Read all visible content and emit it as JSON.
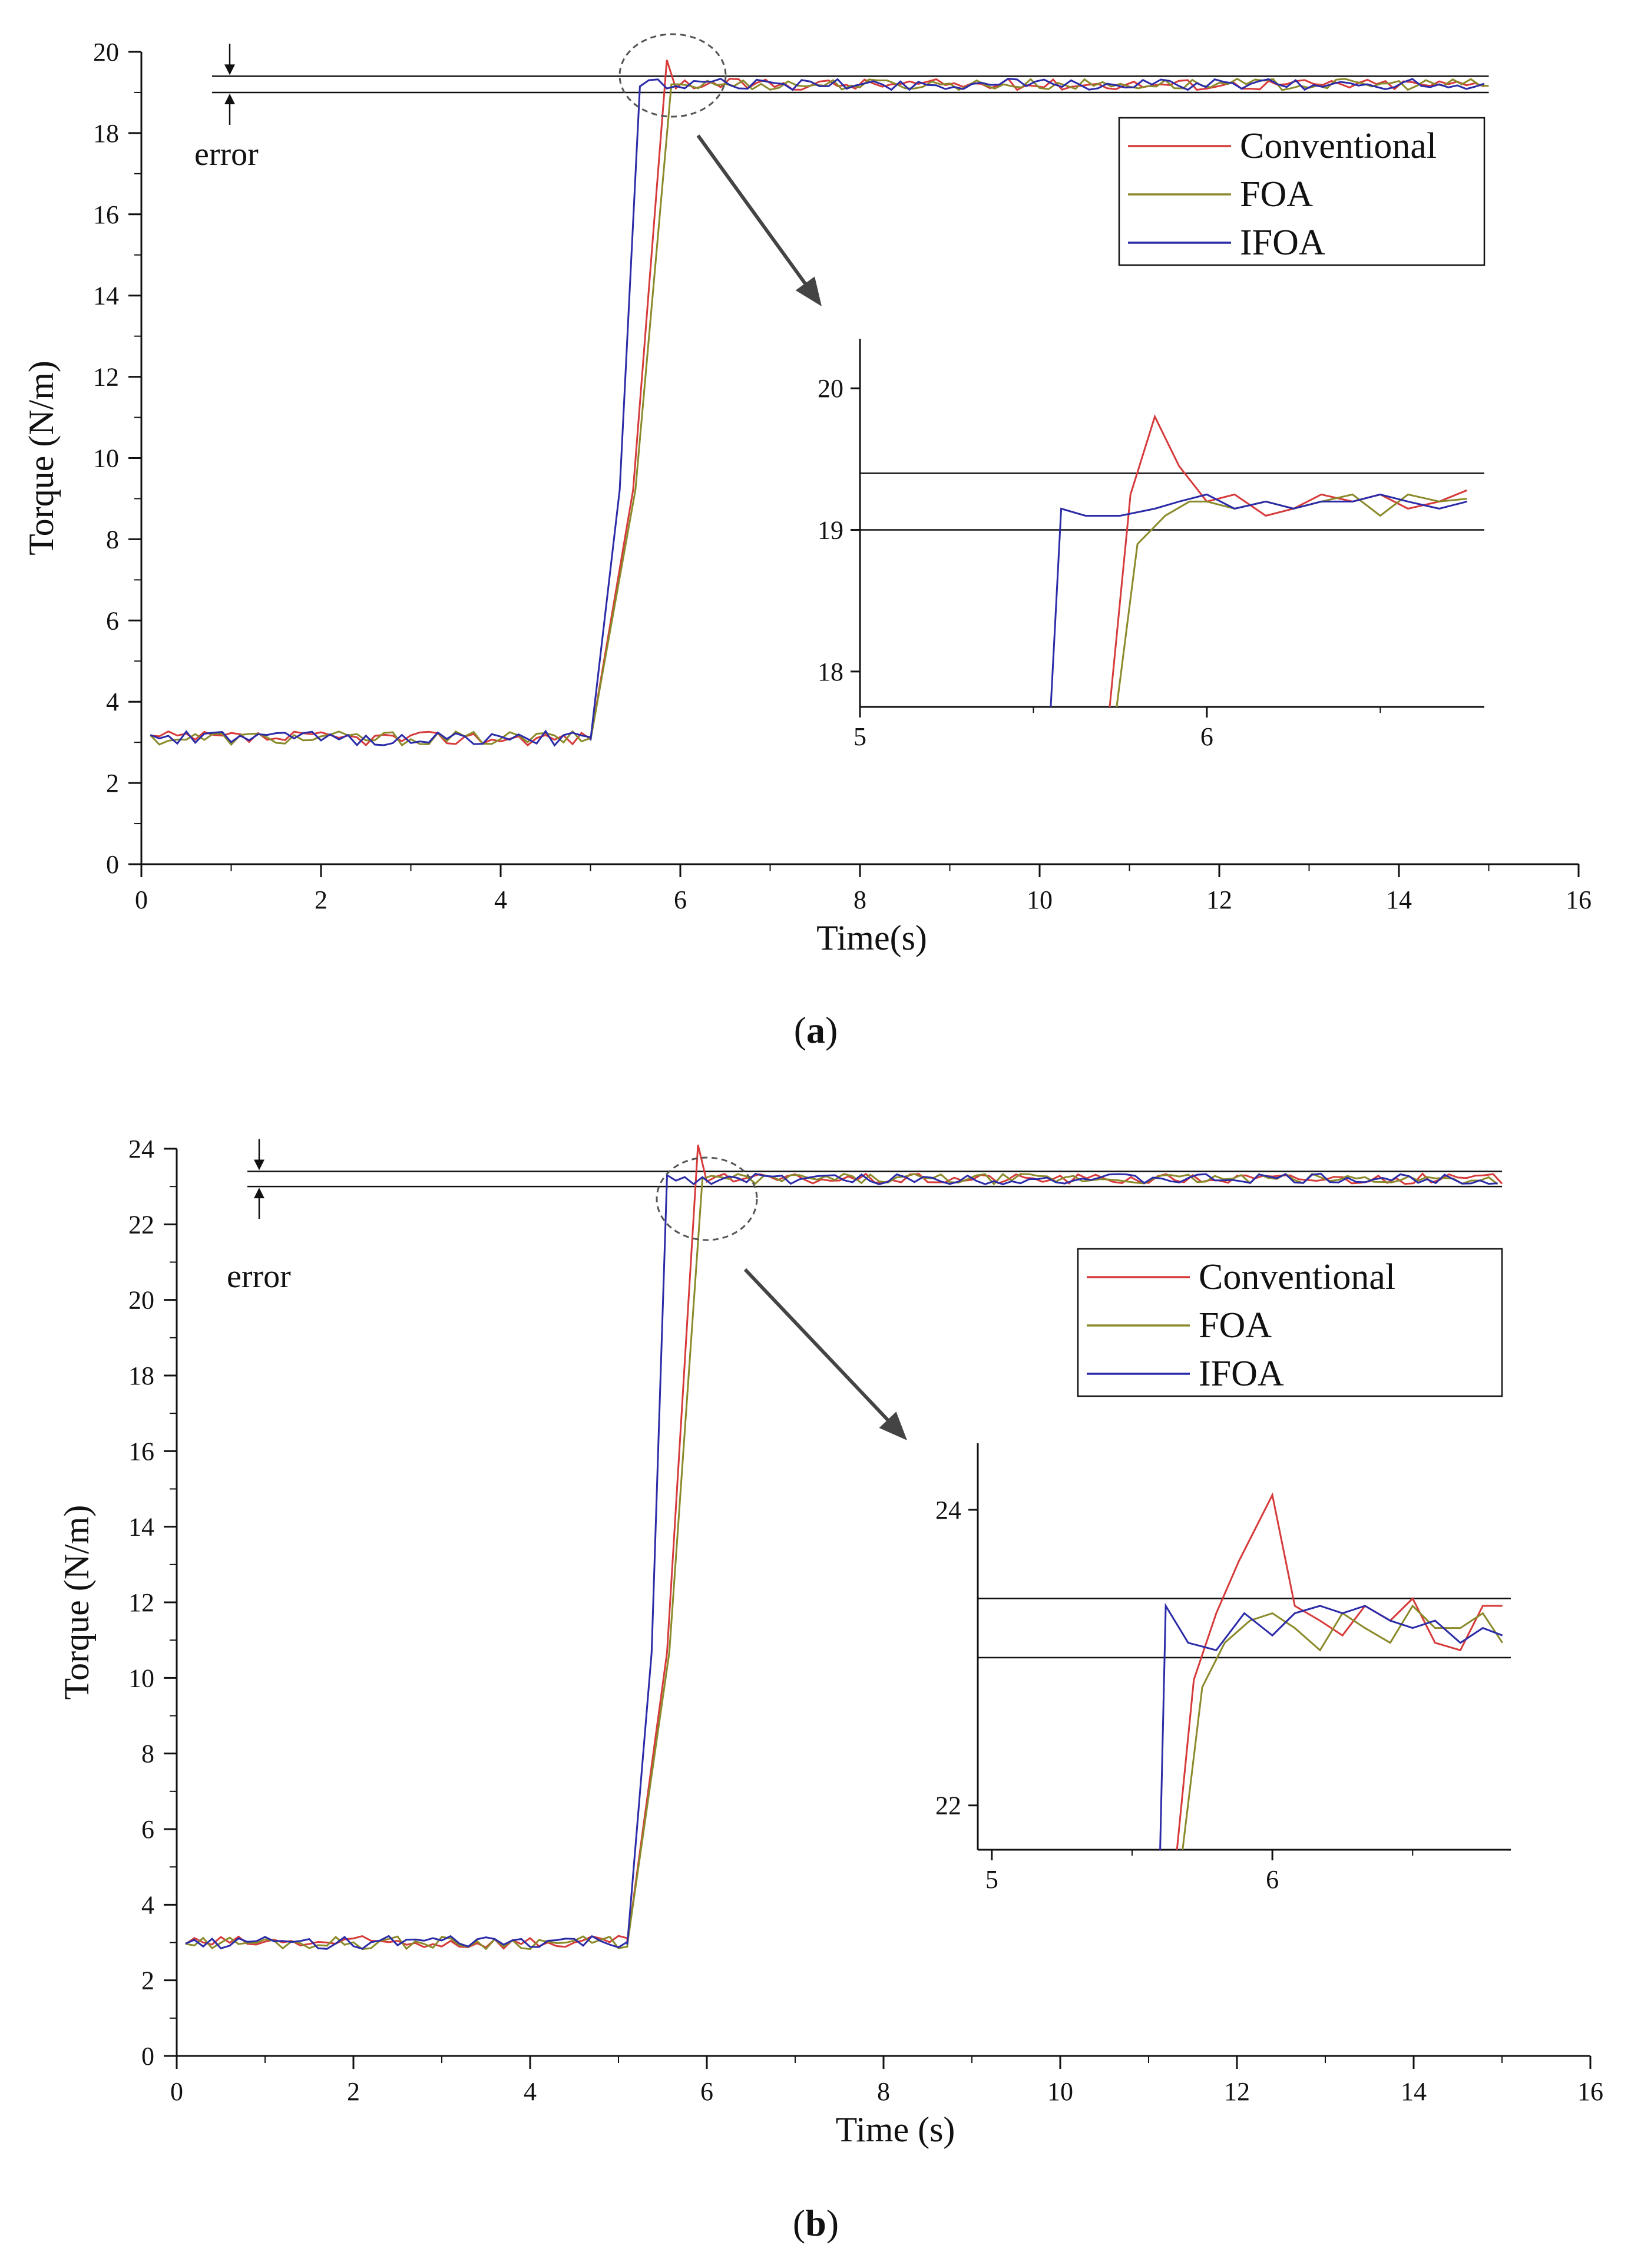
{
  "chart_data": [
    {
      "type": "line",
      "panel": "a",
      "caption_letter": "a",
      "xlabel": "Time(s)",
      "ylabel": "Torque (N/m)",
      "xlim": [
        0,
        16
      ],
      "ylim": [
        0,
        20
      ],
      "xticks": [
        0,
        2,
        4,
        6,
        8,
        10,
        12,
        14,
        16
      ],
      "yticks": [
        0,
        2,
        4,
        6,
        8,
        10,
        12,
        14,
        16,
        18,
        20
      ],
      "error_band": [
        19.0,
        19.4
      ],
      "annotation": "error",
      "legend": [
        {
          "name": "Conventional",
          "color": "#d63a3a"
        },
        {
          "name": "FOA",
          "color": "#8a8a2a"
        },
        {
          "name": "IFOA",
          "color": "#2b2ba8"
        }
      ],
      "step": {
        "t_start": 5.0,
        "low": 3.1,
        "high": 19.2
      },
      "rise_end": {
        "Conventional": 5.85,
        "FOA": 5.9,
        "IFOA": 5.55
      },
      "peak": {
        "Conventional": 19.8,
        "FOA": 19.2,
        "IFOA": 19.15
      },
      "inset": {
        "xlim": [
          5,
          6.8
        ],
        "ylim": [
          17.75,
          20.35
        ],
        "xticks": [
          5,
          6
        ],
        "yticks": [
          18,
          19,
          20
        ],
        "series": [
          {
            "name": "Conventional",
            "x": [
              5.72,
              5.78,
              5.85,
              5.92,
              6.0,
              6.08,
              6.17,
              6.25,
              6.33,
              6.42,
              6.5,
              6.58,
              6.67,
              6.75
            ],
            "y": [
              17.7,
              19.25,
              19.8,
              19.45,
              19.2,
              19.25,
              19.1,
              19.15,
              19.25,
              19.2,
              19.25,
              19.15,
              19.2,
              19.28
            ]
          },
          {
            "name": "FOA",
            "x": [
              5.74,
              5.8,
              5.88,
              5.95,
              6.0,
              6.08,
              6.17,
              6.25,
              6.33,
              6.42,
              6.5,
              6.58,
              6.67,
              6.75
            ],
            "y": [
              17.7,
              18.9,
              19.1,
              19.2,
              19.2,
              19.15,
              19.2,
              19.15,
              19.2,
              19.25,
              19.1,
              19.25,
              19.2,
              19.22
            ]
          },
          {
            "name": "IFOA",
            "x": [
              5.55,
              5.58,
              5.65,
              5.75,
              5.85,
              5.92,
              6.0,
              6.08,
              6.17,
              6.25,
              6.33,
              6.42,
              6.5,
              6.58,
              6.67,
              6.75
            ],
            "y": [
              17.7,
              19.15,
              19.1,
              19.1,
              19.15,
              19.2,
              19.25,
              19.15,
              19.2,
              19.15,
              19.2,
              19.2,
              19.25,
              19.2,
              19.15,
              19.2
            ]
          }
        ]
      }
    },
    {
      "type": "line",
      "panel": "b",
      "caption_letter": "b",
      "xlabel": "Time (s)",
      "ylabel": "Torque (N/m)",
      "xlim": [
        0,
        16
      ],
      "ylim": [
        0,
        24
      ],
      "xticks": [
        0,
        2,
        4,
        6,
        8,
        10,
        12,
        14,
        16
      ],
      "yticks": [
        0,
        2,
        4,
        6,
        8,
        10,
        12,
        14,
        16,
        18,
        20,
        22,
        24
      ],
      "error_band": [
        23.0,
        23.4
      ],
      "annotation": "error",
      "legend": [
        {
          "name": "Conventional",
          "color": "#d63a3a"
        },
        {
          "name": "FOA",
          "color": "#8a8a2a"
        },
        {
          "name": "IFOA",
          "color": "#2b2ba8"
        }
      ],
      "step": {
        "t_start": 5.1,
        "low": 3.0,
        "high": 23.2
      },
      "rise_end": {
        "Conventional": 5.9,
        "FOA": 5.95,
        "IFOA": 5.55
      },
      "peak": {
        "Conventional": 24.1,
        "FOA": 23.2,
        "IFOA": 23.3
      },
      "inset": {
        "xlim": [
          4.95,
          6.85
        ],
        "ylim": [
          21.7,
          24.45
        ],
        "xticks": [
          5,
          6
        ],
        "yticks": [
          22,
          24
        ],
        "series": [
          {
            "name": "Conventional",
            "x": [
              5.66,
              5.72,
              5.8,
              5.88,
              6.0,
              6.08,
              6.17,
              6.25,
              6.33,
              6.42,
              6.5,
              6.58,
              6.67,
              6.75,
              6.82
            ],
            "y": [
              21.6,
              22.85,
              23.3,
              23.65,
              24.1,
              23.35,
              23.25,
              23.15,
              23.35,
              23.25,
              23.4,
              23.1,
              23.05,
              23.35,
              23.35
            ]
          },
          {
            "name": "FOA",
            "x": [
              5.68,
              5.75,
              5.83,
              5.92,
              6.0,
              6.08,
              6.17,
              6.25,
              6.33,
              6.42,
              6.5,
              6.58,
              6.67,
              6.75,
              6.82
            ],
            "y": [
              21.6,
              22.8,
              23.1,
              23.25,
              23.3,
              23.2,
              23.05,
              23.3,
              23.2,
              23.1,
              23.35,
              23.2,
              23.2,
              23.3,
              23.1
            ]
          },
          {
            "name": "IFOA",
            "x": [
              5.6,
              5.62,
              5.7,
              5.8,
              5.9,
              6.0,
              6.08,
              6.17,
              6.25,
              6.33,
              6.42,
              6.5,
              6.58,
              6.67,
              6.75,
              6.82
            ],
            "y": [
              21.6,
              23.35,
              23.1,
              23.05,
              23.3,
              23.15,
              23.3,
              23.35,
              23.3,
              23.35,
              23.25,
              23.2,
              23.25,
              23.1,
              23.2,
              23.15
            ]
          }
        ]
      }
    }
  ]
}
